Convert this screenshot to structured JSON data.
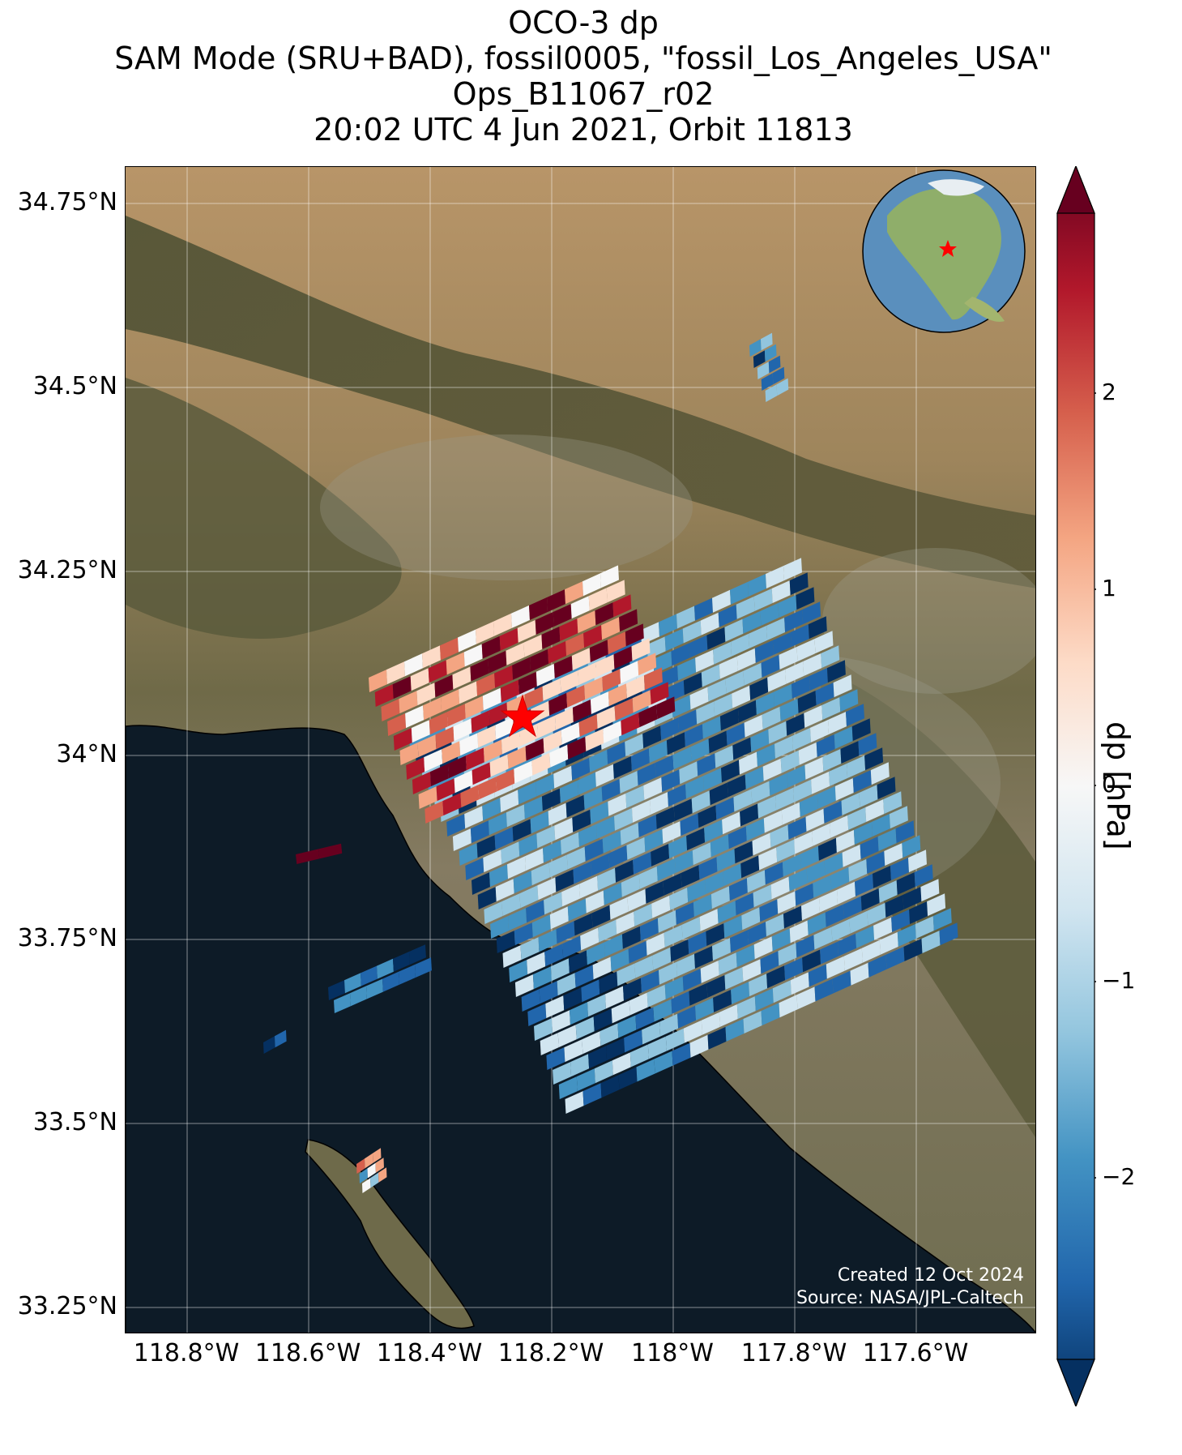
{
  "title": {
    "line1": "OCO-3 dp",
    "line2": "SAM Mode (SRU+BAD), fossil0005, \"fossil_Los_Angeles_USA\"",
    "line3": "Ops_B11067_r02",
    "line4": "20:02 UTC 4 Jun 2021, Orbit 11813"
  },
  "map": {
    "lat_labels": [
      "34.75°N",
      "34.5°N",
      "34.25°N",
      "34°N",
      "33.75°N",
      "33.5°N",
      "33.25°N"
    ],
    "lon_labels": [
      "118.8°W",
      "118.6°W",
      "118.4°W",
      "118.2°W",
      "118°W",
      "117.8°W",
      "117.6°W"
    ],
    "target_marker": "red-star",
    "inset": "globe-north-america-red-star"
  },
  "colorbar": {
    "label": "dp [hPa]",
    "ticks": [
      "2",
      "1",
      "0",
      "−1",
      "−2"
    ],
    "colors": [
      "#67001f",
      "#b2182b",
      "#d6604d",
      "#f4a582",
      "#fddbc7",
      "#f7f7f7",
      "#d1e5f0",
      "#92c5de",
      "#4393c3",
      "#2166ac",
      "#053061"
    ]
  },
  "credit": {
    "created": "Created 12 Oct 2024",
    "source": "Source: NASA/JPL-Caltech"
  }
}
